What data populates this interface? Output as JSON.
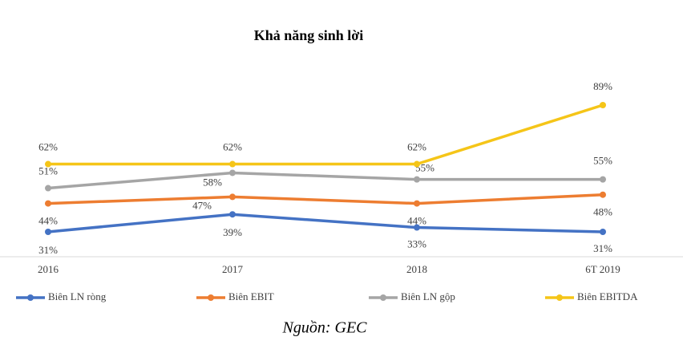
{
  "chart_data": {
    "type": "line",
    "title": "Khả năng sinh lời",
    "categories": [
      "2016",
      "2017",
      "2018",
      "6T 2019"
    ],
    "series": [
      {
        "name": "Biên LN ròng",
        "color": "#4472c4",
        "values": [
          31,
          39,
          33,
          31
        ],
        "value_labels": [
          "31%",
          "39%",
          "33%",
          "31%"
        ]
      },
      {
        "name": "Biên EBIT",
        "color": "#ed7d31",
        "values": [
          44,
          47,
          44,
          48
        ],
        "value_labels": [
          "44%",
          "47%",
          "44%",
          "48%"
        ]
      },
      {
        "name": "Biên LN gộp",
        "color": "#a5a5a5",
        "values": [
          51,
          58,
          55,
          55
        ],
        "value_labels": [
          "51%",
          "58%",
          "55%",
          "55%"
        ]
      },
      {
        "name": "Biên EBITDA",
        "color": "#f5c518",
        "values": [
          62,
          62,
          62,
          89
        ],
        "value_labels": [
          "62%",
          "62%",
          "62%",
          "89%"
        ]
      }
    ],
    "grid": false,
    "legend": "bottom",
    "source": "Nguồn: GEC"
  }
}
